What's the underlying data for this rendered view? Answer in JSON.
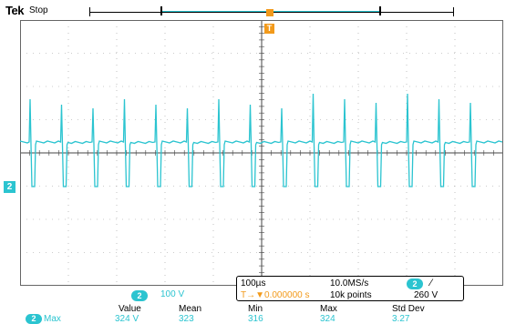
{
  "header": {
    "brand": "Tek",
    "acq_state": "Stop"
  },
  "trigger": {
    "marker_label": "T",
    "position_label": "T"
  },
  "channel2": {
    "marker_label": "2",
    "badge": "2",
    "vertical_scale": "100 V",
    "color": "#2bc4d0"
  },
  "acquisition": {
    "timebase": "100µs",
    "sample_rate": "10.0MS/s",
    "trigger_delay": "T→▼0.000000 s",
    "record_length": "10k points",
    "trigger_source": "2",
    "trigger_slope": "⁄",
    "trigger_level": "260 V"
  },
  "measurements": {
    "headers": [
      "Value",
      "Mean",
      "Min",
      "Max",
      "Std Dev"
    ],
    "rows": [
      {
        "channel": "2",
        "name": "Max",
        "values": [
          "324 V",
          "323",
          "316",
          "324",
          "3.27"
        ]
      }
    ]
  },
  "colors": {
    "trace": "#2bc4d0",
    "trigger": "#f29a1b"
  }
}
